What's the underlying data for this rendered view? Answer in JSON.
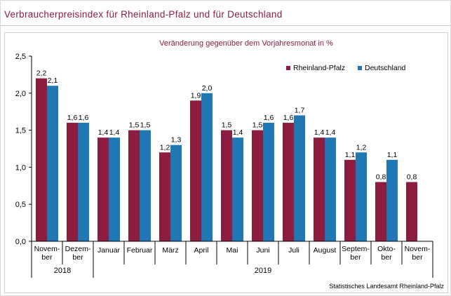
{
  "title": "Verbraucherpreisindex für Rheinland-Pfalz und für Deutschland",
  "source": "Statistisches Landesamt Rheinland-Pfalz",
  "colors": {
    "rlp": "#8b1e3f",
    "de": "#1f77b4",
    "title": "#8b1e3f"
  },
  "chart_data": {
    "type": "bar",
    "subtitle": "Veränderung gegenüber dem Vorjahresmonat in %",
    "categories": [
      [
        "Novem-",
        "ber"
      ],
      [
        "Dezem-",
        "ber"
      ],
      [
        "Januar"
      ],
      [
        "Februar"
      ],
      [
        "März"
      ],
      [
        "April"
      ],
      [
        "Mai"
      ],
      [
        "Juni"
      ],
      [
        "Juli"
      ],
      [
        "August"
      ],
      [
        "Septem-",
        "ber"
      ],
      [
        "Okto-",
        "ber"
      ],
      [
        "Novem-",
        "ber"
      ]
    ],
    "series": [
      {
        "name": "Rheinland-Pfalz",
        "values": [
          2.2,
          1.6,
          1.4,
          1.5,
          1.2,
          1.9,
          1.5,
          1.5,
          1.6,
          1.4,
          1.1,
          0.8,
          0.8
        ],
        "labels": [
          "2,2",
          "1,6",
          "1,4",
          "1,5",
          "1,2",
          "1,9",
          "1,5",
          "1,5",
          "1,6",
          "1,4",
          "1,1",
          "0,8",
          "0,8"
        ]
      },
      {
        "name": "Deutschland",
        "values": [
          2.1,
          1.6,
          1.4,
          1.5,
          1.3,
          2.0,
          1.4,
          1.6,
          1.7,
          1.4,
          1.2,
          1.1,
          null
        ],
        "labels": [
          "2,1",
          "1,6",
          "1,4",
          "1,5",
          "1,3",
          "2,0",
          "1,4",
          "1,6",
          "1,7",
          "1,4",
          "1,2",
          "1,1",
          ""
        ]
      }
    ],
    "ylim": [
      0,
      2.5
    ],
    "yticks": [
      0,
      0.5,
      1.0,
      1.5,
      2.0,
      2.5
    ],
    "ytick_labels": [
      "0,0",
      "0,5",
      "1,0",
      "1,5",
      "2,0",
      "2,5"
    ],
    "year_groups": [
      {
        "label": "2018",
        "start": 0,
        "end": 1
      },
      {
        "label": "2019",
        "start": 2,
        "end": 12
      }
    ],
    "legend": "top-right",
    "grid": false
  }
}
